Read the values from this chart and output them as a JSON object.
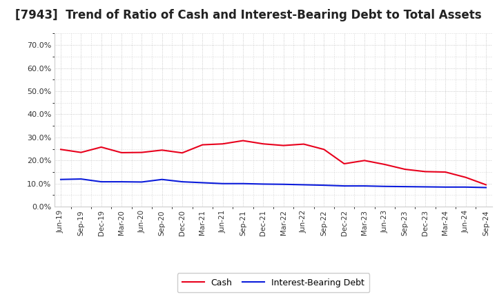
{
  "title": "[7943]  Trend of Ratio of Cash and Interest-Bearing Debt to Total Assets",
  "x_labels": [
    "Jun-19",
    "Sep-19",
    "Dec-19",
    "Mar-20",
    "Jun-20",
    "Sep-20",
    "Dec-20",
    "Mar-21",
    "Jun-21",
    "Sep-21",
    "Dec-21",
    "Mar-22",
    "Jun-22",
    "Sep-22",
    "Dec-22",
    "Mar-23",
    "Jun-23",
    "Sep-23",
    "Dec-23",
    "Mar-24",
    "Jun-24",
    "Sep-24"
  ],
  "cash": [
    0.248,
    0.235,
    0.258,
    0.234,
    0.235,
    0.245,
    0.233,
    0.268,
    0.272,
    0.286,
    0.272,
    0.265,
    0.271,
    0.248,
    0.186,
    0.2,
    0.183,
    0.162,
    0.152,
    0.15,
    0.127,
    0.095
  ],
  "ibd": [
    0.118,
    0.12,
    0.108,
    0.108,
    0.107,
    0.118,
    0.108,
    0.104,
    0.1,
    0.1,
    0.098,
    0.097,
    0.095,
    0.093,
    0.09,
    0.09,
    0.088,
    0.087,
    0.086,
    0.085,
    0.085,
    0.083
  ],
  "cash_color": "#e8001c",
  "ibd_color": "#0b1cdb",
  "ylim": [
    0.0,
    0.75
  ],
  "yticks": [
    0.0,
    0.1,
    0.2,
    0.3,
    0.4,
    0.5,
    0.6,
    0.7
  ],
  "bg_color": "#ffffff",
  "plot_bg_color": "#ffffff",
  "grid_color": "#aaaaaa",
  "title_fontsize": 12,
  "legend_cash": "Cash",
  "legend_ibd": "Interest-Bearing Debt"
}
